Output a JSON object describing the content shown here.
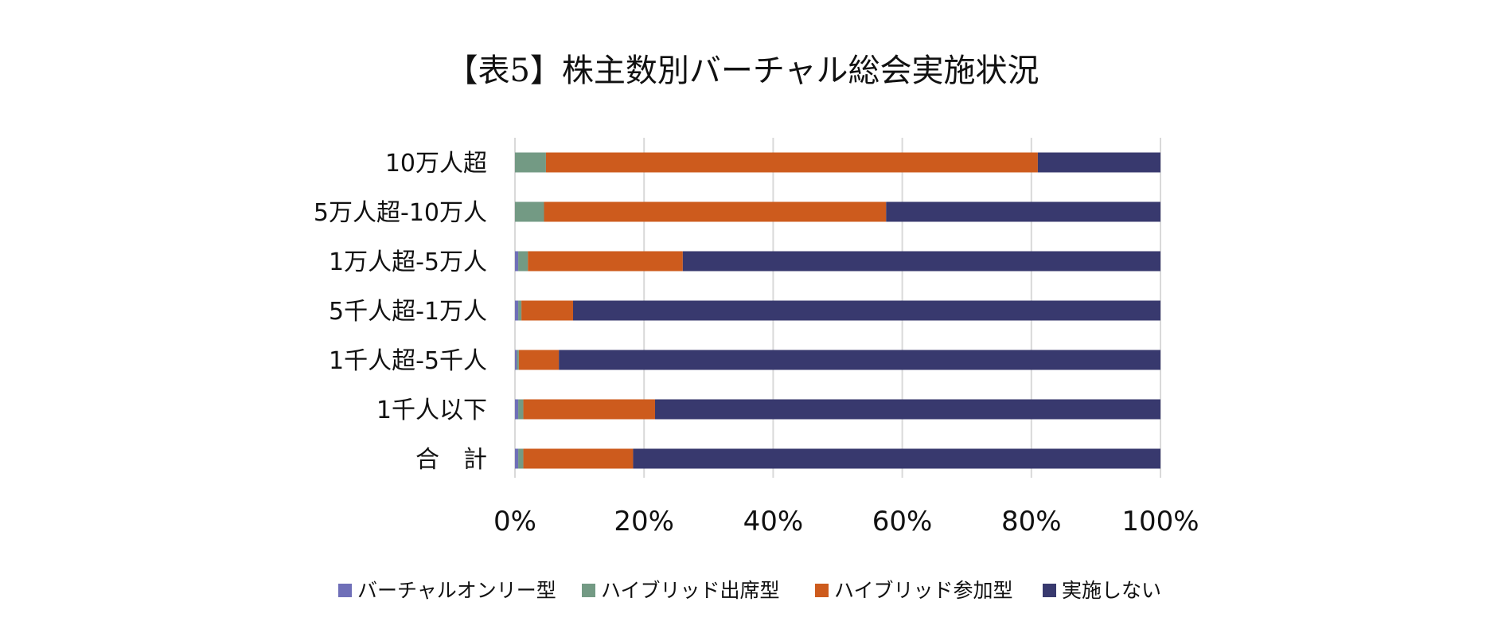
{
  "chart_data": {
    "type": "bar",
    "orientation": "horizontal",
    "stacked": "percent",
    "title": "【表5】株主数別バーチャル総会実施状況",
    "categories": [
      "10万人超",
      "5万人超-10万人",
      "1万人超-5万人",
      "5千人超-1万人",
      "1千人超-5千人",
      "1千人以下",
      "合　計"
    ],
    "series": [
      {
        "name": "バーチャルオンリー型",
        "color": "#6f6fb8",
        "values": [
          0,
          0,
          0.5,
          0.5,
          0.3,
          0.5,
          0.5
        ]
      },
      {
        "name": "ハイブリッド出席型",
        "color": "#739a84",
        "values": [
          4.8,
          4.5,
          1.5,
          0.5,
          0.3,
          0.8,
          0.8
        ]
      },
      {
        "name": "ハイブリッド参加型",
        "color": "#cd5b1d",
        "values": [
          76.2,
          53,
          24,
          8,
          6.2,
          20.4,
          17
        ]
      },
      {
        "name": "実施しない",
        "color": "#38396e",
        "values": [
          19,
          42.5,
          74,
          91,
          93.2,
          78.3,
          81.7
        ]
      }
    ],
    "xlim": [
      0,
      100
    ],
    "xticks": [
      "0%",
      "20%",
      "40%",
      "60%",
      "80%",
      "100%"
    ],
    "grid": true,
    "legend": "bottom"
  }
}
